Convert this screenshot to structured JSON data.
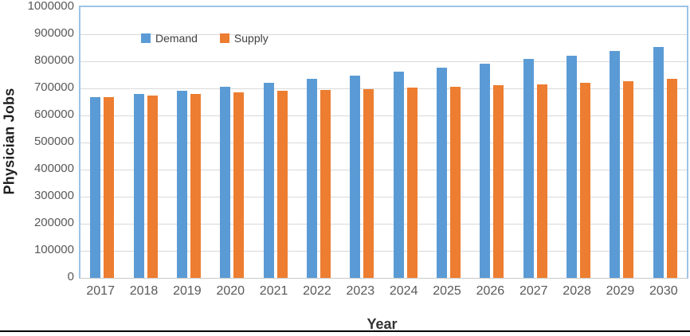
{
  "chart_data": {
    "type": "bar",
    "title": "",
    "xlabel": "Year",
    "ylabel": "Physician Jobs",
    "grid": true,
    "legend_position": "top-center-inside",
    "ylim": [
      0,
      1000000
    ],
    "ytick_interval": 100000,
    "y_tick_labels": [
      "1000000",
      "900000",
      "800000",
      "700000",
      "600000",
      "500000",
      "400000",
      "300000",
      "200000",
      "100000",
      "0"
    ],
    "categories": [
      "2017",
      "2018",
      "2019",
      "2020",
      "2021",
      "2022",
      "2023",
      "2024",
      "2025",
      "2026",
      "2027",
      "2028",
      "2029",
      "2030"
    ],
    "series": [
      {
        "name": "Demand",
        "color": "#5B9BD5",
        "values": [
          668000,
          680000,
          692000,
          707000,
          720000,
          734000,
          747000,
          762000,
          777000,
          792000,
          808000,
          822000,
          838000,
          854000
        ]
      },
      {
        "name": "Supply",
        "color": "#ED7D31",
        "values": [
          667000,
          675000,
          679000,
          685000,
          690000,
          695000,
          697000,
          703000,
          707000,
          711000,
          716000,
          721000,
          726000,
          734000
        ]
      }
    ],
    "colors": {
      "demand": "#5B9BD5",
      "supply": "#ED7D31",
      "gridline": "#D9D9D9",
      "plot_border": "#9DC3E6",
      "tick_text": "#595959",
      "axis_title_text": "#262626",
      "bottom_rule": "#000000"
    }
  }
}
